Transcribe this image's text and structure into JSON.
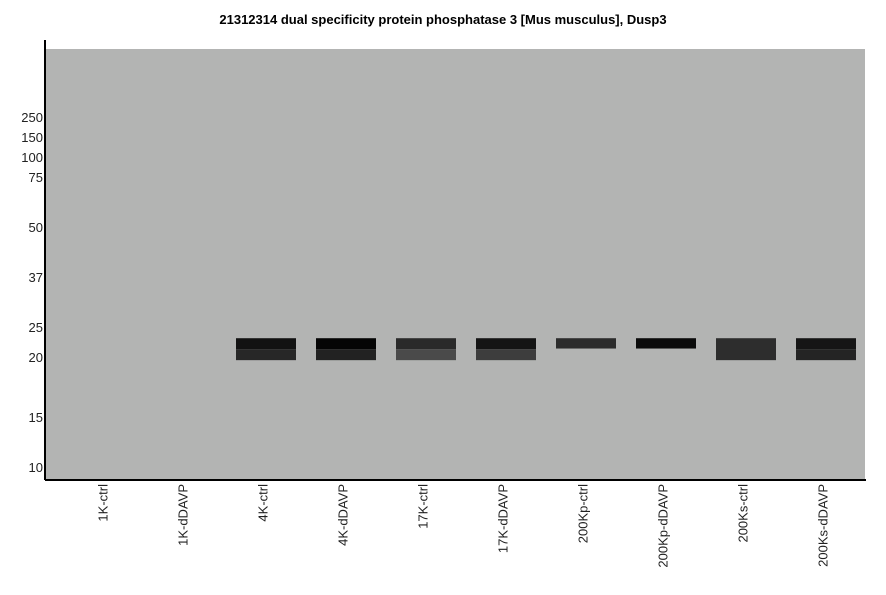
{
  "chart_data": {
    "type": "heatmap",
    "title": "21312314 dual specificity protein phosphatase 3 [Mus musculus], Dusp3",
    "xlabel": "",
    "ylabel": "",
    "background_color": "#b3b4b3",
    "y_scale": "log",
    "y_ticks": [
      250,
      150,
      100,
      75,
      50,
      37,
      25,
      20,
      15,
      10
    ],
    "lanes": [
      "1K-ctrl",
      "1K-dDAVP",
      "4K-ctrl",
      "4K-dDAVP",
      "17K-ctrl",
      "17K-dDAVP",
      "200Kp-ctrl",
      "200Kp-dDAVP",
      "200Ks-ctrl",
      "200Ks-dDAVP"
    ],
    "bands": [
      {
        "lane": "4K-ctrl",
        "parts": [
          {
            "top_kda": 23.0,
            "bottom_kda": 21.2,
            "color": "#121212"
          },
          {
            "top_kda": 21.2,
            "bottom_kda": 19.7,
            "color": "#272727"
          }
        ]
      },
      {
        "lane": "4K-dDAVP",
        "parts": [
          {
            "top_kda": 23.0,
            "bottom_kda": 21.2,
            "color": "#050505"
          },
          {
            "top_kda": 21.2,
            "bottom_kda": 19.7,
            "color": "#222222"
          }
        ]
      },
      {
        "lane": "17K-ctrl",
        "parts": [
          {
            "top_kda": 23.0,
            "bottom_kda": 21.2,
            "color": "#2a2a2a"
          },
          {
            "top_kda": 21.2,
            "bottom_kda": 19.7,
            "color": "#4a4a4a"
          }
        ]
      },
      {
        "lane": "17K-dDAVP",
        "parts": [
          {
            "top_kda": 23.0,
            "bottom_kda": 21.2,
            "color": "#141414"
          },
          {
            "top_kda": 21.2,
            "bottom_kda": 19.7,
            "color": "#3d3d3d"
          }
        ]
      },
      {
        "lane": "200Kp-ctrl",
        "parts": [
          {
            "top_kda": 23.0,
            "bottom_kda": 21.3,
            "color": "#2c2c2c"
          }
        ]
      },
      {
        "lane": "200Kp-dDAVP",
        "parts": [
          {
            "top_kda": 23.0,
            "bottom_kda": 21.3,
            "color": "#0b0b0b"
          }
        ]
      },
      {
        "lane": "200Ks-ctrl",
        "parts": [
          {
            "top_kda": 23.0,
            "bottom_kda": 19.7,
            "color": "#2d2d2d"
          }
        ]
      },
      {
        "lane": "200Ks-dDAVP",
        "parts": [
          {
            "top_kda": 23.0,
            "bottom_kda": 21.2,
            "color": "#151515"
          },
          {
            "top_kda": 21.2,
            "bottom_kda": 19.7,
            "color": "#242424"
          }
        ]
      }
    ]
  }
}
